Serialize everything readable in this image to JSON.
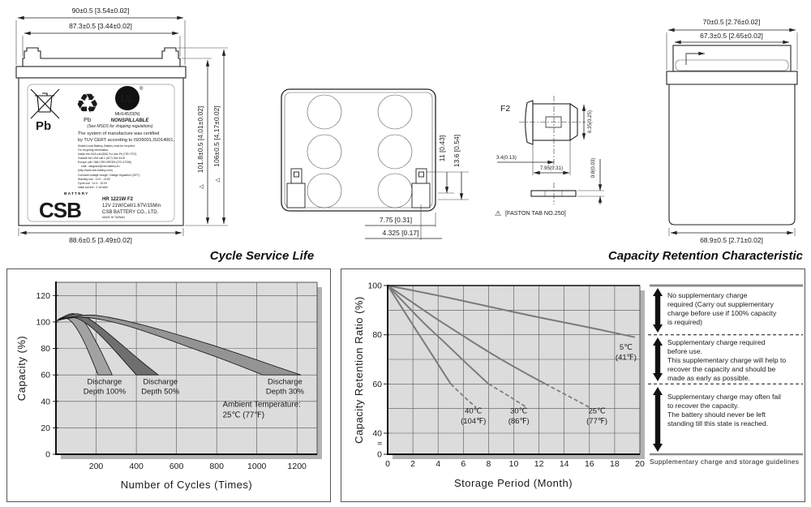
{
  "front_view": {
    "dim_width_outer": "90±0.5  [3.54±0.02]",
    "dim_width_inner": "87.3±0.5  [3.44±0.02]",
    "dim_height_body": "101.8±0.5  [4.01±0.02]",
    "dim_height_total": "106±0.5  [4.17±0.02]",
    "dim_width_bottom": "88.6±0.5  [3.49±0.02]",
    "datum_mark": "△",
    "label": {
      "pb_big": "Pb",
      "pb_recycle": "Pb",
      "ul_text": "UL",
      "ul_reg": "®",
      "ul_file": "MH14533(N)",
      "nonspillable": "NONSPILLABLE",
      "msds": "(See MSDS for shipping regulations)",
      "cert1": "The system of manufacture was certified",
      "cert2": "by TUV CERT according to ISO9001,ISO14001.",
      "fine_print": [
        "Sealed Lead Battery. Battery must be recycled.",
        "For recycling information:",
        "Inside  the USA call (800) Po-Use-Pb (739-7372)",
        "Outside the USA call 1 (617) 344-4415",
        "Europe call  +386 CSB GREEN (372-47336)",
        "mail : csbgrace@csb-battery.eu",
        "(http://www.csb-battery.com)",
        "Constant voltage charge: Voltage regulation (25℃)",
        "Standby use : 13.5 - 13.8V",
        "Cycle use : 14.4 - 15.0V",
        "Initial current : 2.1A MAX"
      ],
      "brand_battery": "BATTERY",
      "brand_csb": "CSB",
      "model": "HR 1221W F2",
      "spec": "12V 21W/Cell/1.67V/15Min",
      "company": "CSB BATTERY CO., LTD.",
      "origin": "MADE IN TAIWAN"
    }
  },
  "top_view": {
    "dim_tab_a": "11  [0.43]",
    "dim_tab_b": "13.6  [0.54]",
    "dim_tab_c": "7.75  [0.31]",
    "dim_tab_d": "4.325  [0.17]"
  },
  "terminal": {
    "name": "F2",
    "dim_width_small": "3.4(0.13)",
    "dim_width": "7.95(0.31)",
    "dim_height": "6.35(0.25)",
    "dim_thickness": "0.8(0.03)",
    "warn_mark": "⚠",
    "note": "[FASTON TAB NO.250]"
  },
  "side_view": {
    "dim_width_outer": "70±0.5  [2.76±0.02]",
    "dim_width_inner": "67.3±0.5  [2.65±0.02]",
    "dim_width_bottom": "68.9±0.5  [2.71±0.02]"
  },
  "cycle_chart": {
    "title": "Cycle Service Life"
  },
  "retention_chart": {
    "title": "Capacity Retention Characteristic",
    "zones": [
      {
        "lines": [
          "No supplementary charge",
          "required (Carry out supplementary",
          "charge before use if 100% capacity",
          "is required)"
        ]
      },
      {
        "lines": [
          "Supplementary charge required",
          "before use.",
          "This supplementary charge will help to",
          "recover  the capacity and should be",
          "made as early as possible."
        ]
      },
      {
        "lines": [
          "Supplementary charge may often fail",
          "to recover the capacity.",
          "The battery should never be left",
          "standing till this state is reached."
        ]
      }
    ],
    "caption": "Supplementary charge and storage guidelines"
  },
  "chart_data": [
    {
      "type": "area",
      "title": "Cycle Service Life",
      "xlabel": "Number of Cycles (Times)",
      "ylabel": "Capacity (%)",
      "xlim": [
        0,
        1300
      ],
      "ylim": [
        0,
        130
      ],
      "x_ticks": [
        200,
        400,
        600,
        800,
        1000,
        1200
      ],
      "y_ticks": [
        0,
        20,
        40,
        60,
        80,
        100,
        120
      ],
      "grid": true,
      "annotation": {
        "lines": [
          "Ambient Temperature:",
          "25℃ (77℉)"
        ],
        "x": 830,
        "y": 36
      },
      "bands": [
        {
          "label_lines": [
            "Discharge",
            "Depth 100%"
          ],
          "label_x": 242,
          "label_y": 53,
          "fill": "#a2a2a2",
          "upper": [
            [
              5,
              101
            ],
            [
              50,
              105.5
            ],
            [
              100,
              107
            ],
            [
              150,
              99
            ],
            [
              200,
              85
            ],
            [
              240,
              73
            ],
            [
              280,
              60
            ]
          ],
          "lower": [
            [
              210,
              60
            ],
            [
              180,
              71
            ],
            [
              150,
              82
            ],
            [
              110,
              94
            ],
            [
              70,
              102
            ],
            [
              30,
              104
            ],
            [
              5,
              101
            ]
          ]
        },
        {
          "label_lines": [
            "Discharge",
            "Depth 50%"
          ],
          "label_x": 520,
          "label_y": 53,
          "fill": "#6f6f6f",
          "upper": [
            [
              5,
              101
            ],
            [
              60,
              105
            ],
            [
              120,
              107
            ],
            [
              200,
              99
            ],
            [
              280,
              89
            ],
            [
              380,
              76
            ],
            [
              450,
              67
            ],
            [
              510,
              60
            ]
          ],
          "lower": [
            [
              400,
              60
            ],
            [
              330,
              72
            ],
            [
              260,
              84
            ],
            [
              180,
              96
            ],
            [
              100,
              104
            ],
            [
              40,
              103
            ],
            [
              5,
              101
            ]
          ]
        },
        {
          "label_lines": [
            "Discharge",
            "Depth 30%"
          ],
          "label_x": 1140,
          "label_y": 53,
          "fill": "#949494",
          "upper": [
            [
              5,
              101
            ],
            [
              80,
              104
            ],
            [
              180,
              106
            ],
            [
              350,
              101
            ],
            [
              550,
              93
            ],
            [
              750,
              84
            ],
            [
              950,
              74
            ],
            [
              1100,
              66
            ],
            [
              1220,
              60
            ]
          ],
          "lower": [
            [
              1030,
              60
            ],
            [
              880,
              69
            ],
            [
              700,
              79
            ],
            [
              500,
              90
            ],
            [
              320,
              99
            ],
            [
              150,
              104
            ],
            [
              60,
              103
            ],
            [
              5,
              101
            ]
          ]
        }
      ]
    },
    {
      "type": "line",
      "title": "Capacity Retention Characteristic",
      "xlabel": "Storage Period (Month)",
      "ylabel": "Capacity Retention Ratio (%)",
      "xlim": [
        0,
        20
      ],
      "x_ticks": [
        0,
        2,
        4,
        6,
        8,
        10,
        12,
        14,
        16,
        18,
        20
      ],
      "y_ticks": [
        0,
        40,
        60,
        80,
        100
      ],
      "y_break": true,
      "break_mark": "≈",
      "grid": true,
      "series": [
        {
          "name_lines": [
            "5℃",
            "(41℉)"
          ],
          "label_x": 18.9,
          "label_y": 74,
          "solid": [
            [
              0,
              100
            ],
            [
              4,
              96
            ],
            [
              8,
              91.5
            ],
            [
              12,
              87
            ],
            [
              16,
              83
            ],
            [
              19.6,
              79
            ]
          ],
          "dashed": []
        },
        {
          "name_lines": [
            "25℃",
            "(77℉)"
          ],
          "label_x": 16.6,
          "label_y": 48,
          "solid": [
            [
              0,
              100
            ],
            [
              2,
              93
            ],
            [
              4,
              86
            ],
            [
              6,
              79.5
            ],
            [
              8,
              73
            ],
            [
              10,
              67
            ],
            [
              12.5,
              60
            ]
          ],
          "dashed": [
            [
              12.5,
              60
            ],
            [
              14,
              56
            ],
            [
              16,
              50.5
            ]
          ]
        },
        {
          "name_lines": [
            "30℃",
            "(86℉)"
          ],
          "label_x": 10.4,
          "label_y": 48,
          "solid": [
            [
              0,
              100
            ],
            [
              1.5,
              92
            ],
            [
              3,
              84
            ],
            [
              4.5,
              77
            ],
            [
              6,
              69.5
            ],
            [
              8,
              60
            ]
          ],
          "dashed": [
            [
              8,
              60
            ],
            [
              9.5,
              55.5
            ],
            [
              11,
              50.5
            ]
          ]
        },
        {
          "name_lines": [
            "40℃",
            "(104℉)"
          ],
          "label_x": 6.8,
          "label_y": 48,
          "solid": [
            [
              0,
              100
            ],
            [
              1,
              92
            ],
            [
              2,
              84
            ],
            [
              3,
              76
            ],
            [
              4,
              68
            ],
            [
              5,
              60
            ]
          ],
          "dashed": [
            [
              5,
              60
            ],
            [
              6,
              55
            ],
            [
              7,
              50.5
            ]
          ]
        }
      ]
    }
  ]
}
